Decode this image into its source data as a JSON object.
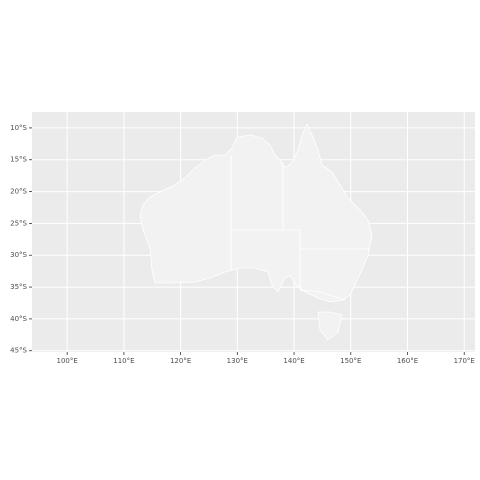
{
  "map": {
    "xlim": [
      93.8,
      171.9
    ],
    "ylim": [
      -45.2,
      -7.5
    ],
    "xticks": [
      {
        "value": 100,
        "label": "100°E"
      },
      {
        "value": 110,
        "label": "110°E"
      },
      {
        "value": 120,
        "label": "120°E"
      },
      {
        "value": 130,
        "label": "130°E"
      },
      {
        "value": 140,
        "label": "140°E"
      },
      {
        "value": 150,
        "label": "150°E"
      },
      {
        "value": 160,
        "label": "160°E"
      },
      {
        "value": 170,
        "label": "170°E"
      }
    ],
    "yticks": [
      {
        "value": -10,
        "label": "10°S"
      },
      {
        "value": -15,
        "label": "15°S"
      },
      {
        "value": -20,
        "label": "20°S"
      },
      {
        "value": -25,
        "label": "25°S"
      },
      {
        "value": -30,
        "label": "30°S"
      },
      {
        "value": -35,
        "label": "35°S"
      },
      {
        "value": -40,
        "label": "40°S"
      },
      {
        "value": -45,
        "label": "45°S"
      }
    ]
  }
}
